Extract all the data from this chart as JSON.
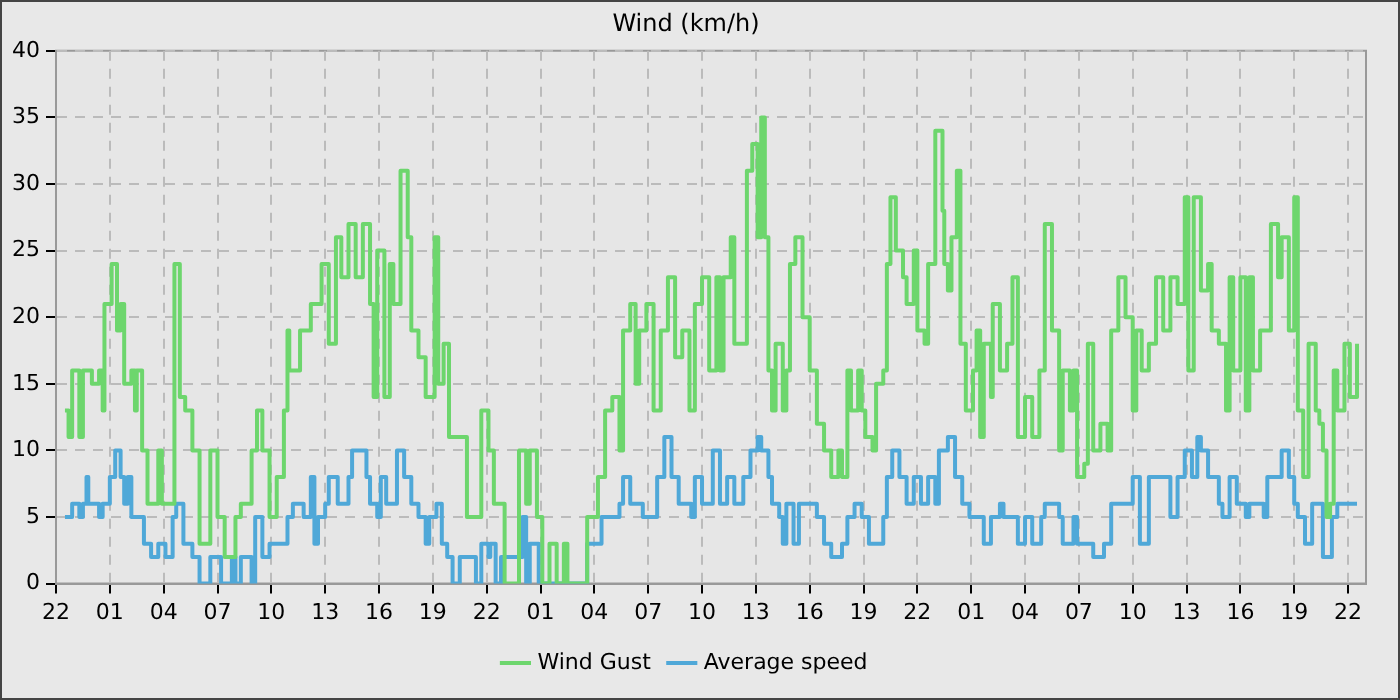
{
  "chart_data": {
    "type": "step",
    "title": "Wind (km/h)",
    "xlim": [
      "--01-01T22:00",
      "--01-04T23:00"
    ],
    "ylim": [
      0,
      40
    ],
    "xticks": [
      {
        "value": "--01-01T22:00",
        "label": "22"
      },
      {
        "value": "--01-02T01:00",
        "label": "01"
      },
      {
        "value": "--01-02T04:00",
        "label": "04"
      },
      {
        "value": "--01-02T07:00",
        "label": "07"
      },
      {
        "value": "--01-02T10:00",
        "label": "10"
      },
      {
        "value": "--01-02T13:00",
        "label": "13"
      },
      {
        "value": "--01-02T16:00",
        "label": "16"
      },
      {
        "value": "--01-02T19:00",
        "label": "19"
      },
      {
        "value": "--01-02T22:00",
        "label": "22"
      },
      {
        "value": "--01-03T01:00",
        "label": "01"
      },
      {
        "value": "--01-03T04:00",
        "label": "04"
      },
      {
        "value": "--01-03T07:00",
        "label": "07"
      },
      {
        "value": "--01-03T10:00",
        "label": "10"
      },
      {
        "value": "--01-03T13:00",
        "label": "13"
      },
      {
        "value": "--01-03T16:00",
        "label": "16"
      },
      {
        "value": "--01-03T19:00",
        "label": "19"
      },
      {
        "value": "--01-03T22:00",
        "label": "22"
      },
      {
        "value": "--01-04T01:00",
        "label": "01"
      },
      {
        "value": "--01-04T04:00",
        "label": "04"
      },
      {
        "value": "--01-04T07:00",
        "label": "07"
      },
      {
        "value": "--01-04T10:00",
        "label": "10"
      },
      {
        "value": "--01-04T13:00",
        "label": "13"
      },
      {
        "value": "--01-04T16:00",
        "label": "16"
      },
      {
        "value": "--01-04T19:00",
        "label": "19"
      },
      {
        "value": "--01-04T22:00",
        "label": "22"
      }
    ],
    "yticks": [
      0,
      5,
      10,
      15,
      20,
      25,
      30,
      35,
      40
    ],
    "grid": true,
    "legend": "bottom",
    "marker": "none",
    "line_style": "solid",
    "series": [
      {
        "name": "Wind Gust",
        "color": "#6dd66d",
        "x": [
          "--01-01T22:30",
          "--01-01T22:42",
          "--01-01T22:54",
          "--01-01T23:18",
          "--01-01T23:30",
          "--01-02T00:00",
          "--01-02T00:24",
          "--01-02T00:36",
          "--01-02T00:42",
          "--01-02T01:06",
          "--01-02T01:24",
          "--01-02T01:36",
          "--01-02T01:48",
          "--01-02T02:12",
          "--01-02T02:24",
          "--01-02T02:30",
          "--01-02T02:48",
          "--01-02T03:06",
          "--01-02T03:42",
          "--01-02T03:54",
          "--01-02T04:36",
          "--01-02T04:54",
          "--01-02T05:12",
          "--01-02T05:36",
          "--01-02T06:00",
          "--01-02T06:36",
          "--01-02T07:00",
          "--01-02T07:24",
          "--01-02T08:00",
          "--01-02T08:18",
          "--01-02T08:54",
          "--01-02T09:12",
          "--01-02T09:30",
          "--01-02T09:54",
          "--01-02T10:18",
          "--01-02T10:42",
          "--01-02T10:54",
          "--01-02T11:00",
          "--01-02T11:36",
          "--01-02T12:12",
          "--01-02T12:48",
          "--01-02T13:12",
          "--01-02T13:36",
          "--01-02T13:54",
          "--01-02T14:18",
          "--01-02T14:42",
          "--01-02T15:06",
          "--01-02T15:30",
          "--01-02T15:42",
          "--01-02T15:54",
          "--01-02T16:18",
          "--01-02T16:36",
          "--01-02T16:48",
          "--01-02T17:12",
          "--01-02T17:36",
          "--01-02T17:48",
          "--01-02T18:12",
          "--01-02T18:36",
          "--01-02T19:06",
          "--01-02T19:18",
          "--01-02T19:36",
          "--01-02T19:54",
          "--01-02T20:30",
          "--01-02T20:54",
          "--01-02T21:30",
          "--01-02T21:42",
          "--01-02T22:06",
          "--01-02T22:24",
          "--01-02T23:00",
          "--01-02T23:48",
          "--01-03T00:12",
          "--01-03T00:24",
          "--01-03T00:48",
          "--01-03T01:06",
          "--01-03T01:30",
          "--01-03T01:54",
          "--01-03T02:18",
          "--01-03T02:30",
          "--01-03T03:36",
          "--01-03T04:12",
          "--01-03T04:36",
          "--01-03T05:00",
          "--01-03T05:24",
          "--01-03T05:36",
          "--01-03T06:00",
          "--01-03T06:18",
          "--01-03T06:30",
          "--01-03T06:54",
          "--01-03T07:18",
          "--01-03T07:42",
          "--01-03T08:06",
          "--01-03T08:30",
          "--01-03T08:54",
          "--01-03T09:18",
          "--01-03T09:36",
          "--01-03T10:00",
          "--01-03T10:24",
          "--01-03T10:48",
          "--01-03T11:00",
          "--01-03T11:12",
          "--01-03T11:36",
          "--01-03T11:48",
          "--01-03T12:12",
          "--01-03T12:30",
          "--01-03T12:48",
          "--01-03T13:06",
          "--01-03T13:18",
          "--01-03T13:30",
          "--01-03T13:42",
          "--01-03T13:54",
          "--01-03T14:06",
          "--01-03T14:30",
          "--01-03T14:42",
          "--01-03T14:54",
          "--01-03T15:12",
          "--01-03T15:36",
          "--01-03T16:00",
          "--01-03T16:24",
          "--01-03T16:48",
          "--01-03T17:12",
          "--01-03T17:36",
          "--01-03T17:48",
          "--01-03T18:06",
          "--01-03T18:18",
          "--01-03T18:42",
          "--01-03T18:54",
          "--01-03T19:06",
          "--01-03T19:30",
          "--01-03T19:42",
          "--01-03T20:06",
          "--01-03T20:18",
          "--01-03T20:30",
          "--01-03T20:48",
          "--01-03T21:12",
          "--01-03T21:24",
          "--01-03T21:48",
          "--01-03T22:00",
          "--01-03T22:24",
          "--01-03T22:36",
          "--01-03T23:00",
          "--01-03T23:24",
          "--01-03T23:30",
          "--01-03T23:42",
          "--01-03T23:54",
          "--01-04T00:12",
          "--01-04T00:24",
          "--01-04T00:42",
          "--01-04T01:06",
          "--01-04T01:18",
          "--01-04T01:30",
          "--01-04T01:42",
          "--01-04T02:06",
          "--01-04T02:12",
          "--01-04T02:36",
          "--01-04T03:00",
          "--01-04T03:18",
          "--01-04T03:36",
          "--01-04T04:00",
          "--01-04T04:24",
          "--01-04T04:48",
          "--01-04T05:06",
          "--01-04T05:30",
          "--01-04T05:54",
          "--01-04T06:06",
          "--01-04T06:30",
          "--01-04T06:42",
          "--01-04T06:54",
          "--01-04T07:18",
          "--01-04T07:30",
          "--01-04T07:48",
          "--01-04T08:12",
          "--01-04T08:36",
          "--01-04T08:48",
          "--01-04T09:12",
          "--01-04T09:36",
          "--01-04T10:00",
          "--01-04T10:12",
          "--01-04T10:30",
          "--01-04T10:54",
          "--01-04T11:18",
          "--01-04T11:42",
          "--01-04T12:06",
          "--01-04T12:30",
          "--01-04T12:54",
          "--01-04T13:06",
          "--01-04T13:24",
          "--01-04T13:48",
          "--01-04T14:12",
          "--01-04T14:24",
          "--01-04T14:48",
          "--01-04T15:12",
          "--01-04T15:24",
          "--01-04T15:36",
          "--01-04T16:00",
          "--01-04T16:18",
          "--01-04T16:30",
          "--01-04T16:42",
          "--01-04T17:06",
          "--01-04T17:42",
          "--01-04T18:06",
          "--01-04T18:18",
          "--01-04T18:42",
          "--01-04T19:00",
          "--01-04T19:12",
          "--01-04T19:30",
          "--01-04T19:48",
          "--01-04T20:12",
          "--01-04T20:24",
          "--01-04T20:36",
          "--01-04T20:48",
          "--01-04T21:00",
          "--01-04T21:12",
          "--01-04T21:24",
          "--01-04T21:48",
          "--01-04T22:06",
          "--01-04T22:30"
        ],
        "values": [
          13,
          11,
          16,
          11,
          16,
          15,
          16,
          13,
          21,
          24,
          19,
          21,
          15,
          16,
          13,
          16,
          10,
          6,
          10,
          6,
          24,
          14,
          13,
          10,
          3,
          10,
          5,
          2,
          5,
          6,
          10,
          13,
          10,
          5,
          8,
          13,
          19,
          16,
          19,
          21,
          24,
          18,
          26,
          23,
          27,
          23,
          27,
          21,
          14,
          25,
          14,
          24,
          21,
          31,
          26,
          19,
          17,
          14,
          26,
          15,
          18,
          11,
          11,
          5,
          5,
          13,
          10,
          6,
          0,
          10,
          6,
          10,
          5,
          0,
          3,
          0,
          3,
          0,
          5,
          8,
          13,
          14,
          10,
          19,
          21,
          15,
          19,
          21,
          13,
          19,
          23,
          17,
          19,
          13,
          21,
          23,
          16,
          23,
          16,
          23,
          26,
          18,
          18,
          31,
          33,
          26,
          35,
          26,
          16,
          13,
          18,
          13,
          16,
          24,
          26,
          20,
          16,
          12,
          10,
          8,
          10,
          8,
          16,
          13,
          16,
          13,
          11,
          10,
          15,
          16,
          24,
          29,
          25,
          23,
          21,
          25,
          19,
          18,
          24,
          34,
          28,
          24,
          22,
          26,
          31,
          18,
          13,
          16,
          19,
          11,
          18,
          14,
          21,
          16,
          18,
          23,
          11,
          14,
          11,
          16,
          27,
          19,
          10,
          16,
          13,
          16,
          8,
          9,
          18,
          10,
          12,
          10,
          19,
          23,
          20,
          13,
          19,
          16,
          18,
          23,
          19,
          23,
          21,
          29,
          16,
          29,
          22,
          24,
          19,
          18,
          13,
          23,
          16,
          23,
          13,
          23,
          16,
          19,
          27,
          23,
          26,
          19,
          29,
          13,
          8,
          18,
          13,
          12,
          10,
          5,
          6,
          16,
          13,
          18,
          14,
          18
        ]
      },
      {
        "name": "Average speed",
        "color": "#4fa8d8",
        "x": [
          "--01-01T22:30",
          "--01-01T22:54",
          "--01-01T23:18",
          "--01-01T23:30",
          "--01-01T23:42",
          "--01-01T23:48",
          "--01-02T00:24",
          "--01-02T00:36",
          "--01-02T01:00",
          "--01-02T01:18",
          "--01-02T01:36",
          "--01-02T01:48",
          "--01-02T02:00",
          "--01-02T02:12",
          "--01-02T02:42",
          "--01-02T02:54",
          "--01-02T03:18",
          "--01-02T03:42",
          "--01-02T04:06",
          "--01-02T04:30",
          "--01-02T04:42",
          "--01-02T05:06",
          "--01-02T05:36",
          "--01-02T06:00",
          "--01-02T06:36",
          "--01-02T07:12",
          "--01-02T07:48",
          "--01-02T08:00",
          "--01-02T08:18",
          "--01-02T08:54",
          "--01-02T09:06",
          "--01-02T09:30",
          "--01-02T09:54",
          "--01-02T10:54",
          "--01-02T11:12",
          "--01-02T11:48",
          "--01-02T12:12",
          "--01-02T12:24",
          "--01-02T12:36",
          "--01-02T13:00",
          "--01-02T13:12",
          "--01-02T13:42",
          "--01-02T14:18",
          "--01-02T14:30",
          "--01-02T15:18",
          "--01-02T15:30",
          "--01-02T15:54",
          "--01-02T16:06",
          "--01-02T16:24",
          "--01-02T17:00",
          "--01-02T17:24",
          "--01-02T17:48",
          "--01-02T18:12",
          "--01-02T18:36",
          "--01-02T18:48",
          "--01-02T19:12",
          "--01-02T19:30",
          "--01-02T19:48",
          "--01-02T20:06",
          "--01-02T20:30",
          "--01-02T21:06",
          "--01-02T21:24",
          "--01-02T21:42",
          "--01-02T22:06",
          "--01-02T22:12",
          "--01-02T22:30",
          "--01-02T22:48",
          "--01-03T00:00",
          "--01-03T00:12",
          "--01-03T00:24",
          "--01-03T00:54",
          "--01-03T03:36",
          "--01-03T04:24",
          "--01-03T05:24",
          "--01-03T05:36",
          "--01-03T06:00",
          "--01-03T06:42",
          "--01-03T07:30",
          "--01-03T07:54",
          "--01-03T08:18",
          "--01-03T08:42",
          "--01-03T09:24",
          "--01-03T09:36",
          "--01-03T10:00",
          "--01-03T10:36",
          "--01-03T11:00",
          "--01-03T11:24",
          "--01-03T11:48",
          "--01-03T12:18",
          "--01-03T12:42",
          "--01-03T13:06",
          "--01-03T13:18",
          "--01-03T13:42",
          "--01-03T13:54",
          "--01-03T14:18",
          "--01-03T14:30",
          "--01-03T14:42",
          "--01-03T15:06",
          "--01-03T15:24",
          "--01-03T16:24",
          "--01-03T16:48",
          "--01-03T17:12",
          "--01-03T17:48",
          "--01-03T18:06",
          "--01-03T18:30",
          "--01-03T18:54",
          "--01-03T19:18",
          "--01-03T20:06",
          "--01-03T20:18",
          "--01-03T20:36",
          "--01-03T21:00",
          "--01-03T21:24",
          "--01-03T21:48",
          "--01-03T22:12",
          "--01-03T22:36",
          "--01-03T23:00",
          "--01-03T23:12",
          "--01-03T23:42",
          "--01-04T00:06",
          "--01-04T00:30",
          "--01-04T00:54",
          "--01-04T01:42",
          "--01-04T02:06",
          "--01-04T02:36",
          "--01-04T02:48",
          "--01-04T03:36",
          "--01-04T04:00",
          "--01-04T04:24",
          "--01-04T04:54",
          "--01-04T05:06",
          "--01-04T05:54",
          "--01-04T06:06",
          "--01-04T06:42",
          "--01-04T06:54",
          "--01-04T07:48",
          "--01-04T08:24",
          "--01-04T08:48",
          "--01-04T10:00",
          "--01-04T10:24",
          "--01-04T10:54",
          "--01-04T11:42",
          "--01-04T12:06",
          "--01-04T12:30",
          "--01-04T12:54",
          "--01-04T13:18",
          "--01-04T13:36",
          "--01-04T13:48",
          "--01-04T14:12",
          "--01-04T14:48",
          "--01-04T15:00",
          "--01-04T15:24",
          "--01-04T15:48",
          "--01-04T16:18",
          "--01-04T16:30",
          "--01-04T17:18",
          "--01-04T17:30",
          "--01-04T18:18",
          "--01-04T18:42",
          "--01-04T19:00",
          "--01-04T19:12",
          "--01-04T19:36",
          "--01-04T20:00",
          "--01-04T20:36",
          "--01-04T21:06",
          "--01-04T21:24",
          "--01-04T22:30"
        ],
        "values": [
          5,
          6,
          5,
          6,
          8,
          6,
          5,
          6,
          8,
          10,
          8,
          6,
          8,
          5,
          5,
          3,
          2,
          3,
          2,
          5,
          6,
          3,
          2,
          0,
          2,
          0,
          2,
          0,
          2,
          0,
          5,
          2,
          3,
          5,
          6,
          5,
          8,
          3,
          5,
          6,
          8,
          6,
          8,
          10,
          8,
          6,
          5,
          8,
          6,
          10,
          8,
          6,
          5,
          3,
          5,
          6,
          3,
          2,
          0,
          2,
          2,
          0,
          3,
          2,
          3,
          0,
          2,
          5,
          0,
          3,
          0,
          3,
          5,
          6,
          8,
          6,
          5,
          8,
          11,
          8,
          6,
          5,
          8,
          6,
          10,
          6,
          8,
          6,
          8,
          10,
          11,
          10,
          8,
          6,
          5,
          3,
          6,
          3,
          6,
          5,
          3,
          2,
          3,
          5,
          6,
          5,
          3,
          5,
          8,
          10,
          8,
          6,
          8,
          6,
          8,
          6,
          10,
          11,
          8,
          6,
          5,
          3,
          5,
          6,
          5,
          3,
          5,
          3,
          5,
          6,
          5,
          3,
          5,
          3,
          2,
          3,
          6,
          8,
          3,
          8,
          8,
          5,
          8,
          10,
          8,
          11,
          10,
          8,
          6,
          5,
          8,
          6,
          5,
          6,
          5,
          8,
          10,
          8,
          6,
          5,
          3,
          6,
          2,
          5,
          6,
          6
        ]
      }
    ]
  }
}
